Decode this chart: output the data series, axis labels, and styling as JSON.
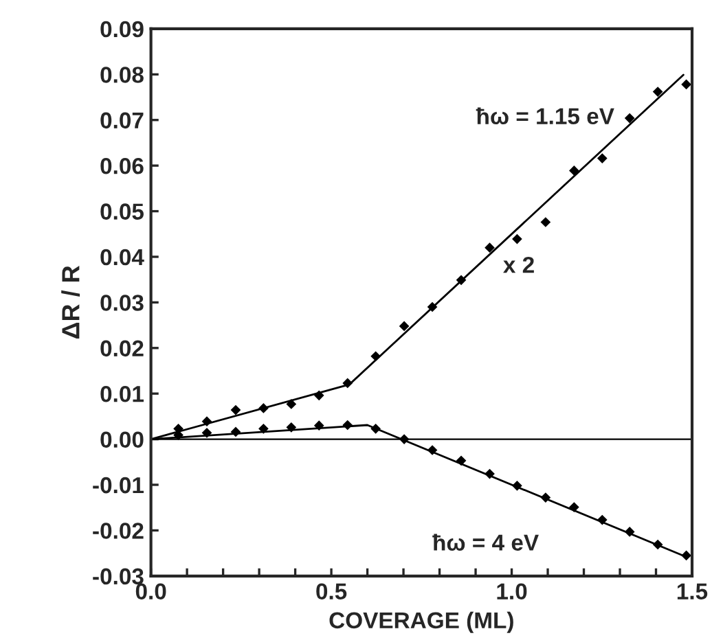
{
  "chart_data": {
    "type": "scatter",
    "xlabel": "COVERAGE (ML)",
    "ylabel": "ΔR / R",
    "xlim": [
      0,
      1.5
    ],
    "ylim": [
      -0.03,
      0.09
    ],
    "xticks": [
      {
        "value": 0.0,
        "label": "0.0"
      },
      {
        "value": 0.1,
        "label": null
      },
      {
        "value": 0.2,
        "label": null
      },
      {
        "value": 0.3,
        "label": null
      },
      {
        "value": 0.4,
        "label": null
      },
      {
        "value": 0.5,
        "label": "0.5"
      },
      {
        "value": 0.6,
        "label": null
      },
      {
        "value": 0.7,
        "label": null
      },
      {
        "value": 0.8,
        "label": null
      },
      {
        "value": 0.9,
        "label": null
      },
      {
        "value": 1.0,
        "label": "1.0"
      },
      {
        "value": 1.1,
        "label": null
      },
      {
        "value": 1.2,
        "label": null
      },
      {
        "value": 1.3,
        "label": null
      },
      {
        "value": 1.4,
        "label": null
      },
      {
        "value": 1.5,
        "label": "1.5"
      }
    ],
    "yticks": [
      {
        "value": -0.03,
        "label": "-0.03"
      },
      {
        "value": -0.02,
        "label": "-0.02"
      },
      {
        "value": -0.01,
        "label": "-0.01"
      },
      {
        "value": 0.0,
        "label": "0.00"
      },
      {
        "value": 0.01,
        "label": "0.01"
      },
      {
        "value": 0.02,
        "label": "0.02"
      },
      {
        "value": 0.03,
        "label": "0.03"
      },
      {
        "value": 0.04,
        "label": "0.04"
      },
      {
        "value": 0.05,
        "label": "0.05"
      },
      {
        "value": 0.06,
        "label": "0.06"
      },
      {
        "value": 0.07,
        "label": "0.07"
      },
      {
        "value": 0.08,
        "label": "0.08"
      },
      {
        "value": 0.09,
        "label": "0.09"
      }
    ],
    "grid": false,
    "legend": false,
    "series": [
      {
        "name": "ħω = 1.15 eV",
        "marker": "diamond",
        "color": "#000000",
        "x": [
          0.076,
          0.155,
          0.235,
          0.312,
          0.389,
          0.466,
          0.545,
          0.623,
          0.702,
          0.78,
          0.86,
          0.939,
          1.015,
          1.094,
          1.173,
          1.251,
          1.327,
          1.405,
          1.484
        ],
        "values": [
          0.0023,
          0.0039,
          0.0064,
          0.0068,
          0.0077,
          0.0096,
          0.0123,
          0.0182,
          0.0248,
          0.029,
          0.0349,
          0.042,
          0.0439,
          0.0476,
          0.0589,
          0.0616,
          0.0704,
          0.0762,
          0.0778
        ]
      },
      {
        "type": "line",
        "color": "#000000",
        "x": [
          0,
          0.55,
          1.476
        ],
        "values": [
          0,
          0.012,
          0.0799
        ]
      },
      {
        "name": "ħω = 4 eV",
        "marker": "diamond",
        "color": "#000000",
        "x": [
          0.076,
          0.155,
          0.235,
          0.312,
          0.389,
          0.466,
          0.545,
          0.623,
          0.702,
          0.78,
          0.86,
          0.939,
          1.015,
          1.094,
          1.173,
          1.251,
          1.327,
          1.405,
          1.484
        ],
        "values": [
          0.0009,
          0.0014,
          0.0016,
          0.0023,
          0.0026,
          0.003,
          0.0031,
          0.0023,
          0.0,
          -0.0024,
          -0.0047,
          -0.0076,
          -0.0102,
          -0.0128,
          -0.0149,
          -0.0177,
          -0.0203,
          -0.0231,
          -0.0255
        ]
      },
      {
        "type": "line",
        "color": "#000000",
        "x": [
          0,
          0.6,
          1.484
        ],
        "values": [
          0,
          0.0031,
          -0.0258
        ]
      }
    ],
    "ref_lines": [
      {
        "axis": "y",
        "value": 0,
        "color": "#000000",
        "line_style": "solid"
      }
    ],
    "annotations": [
      "x 2"
    ]
  }
}
